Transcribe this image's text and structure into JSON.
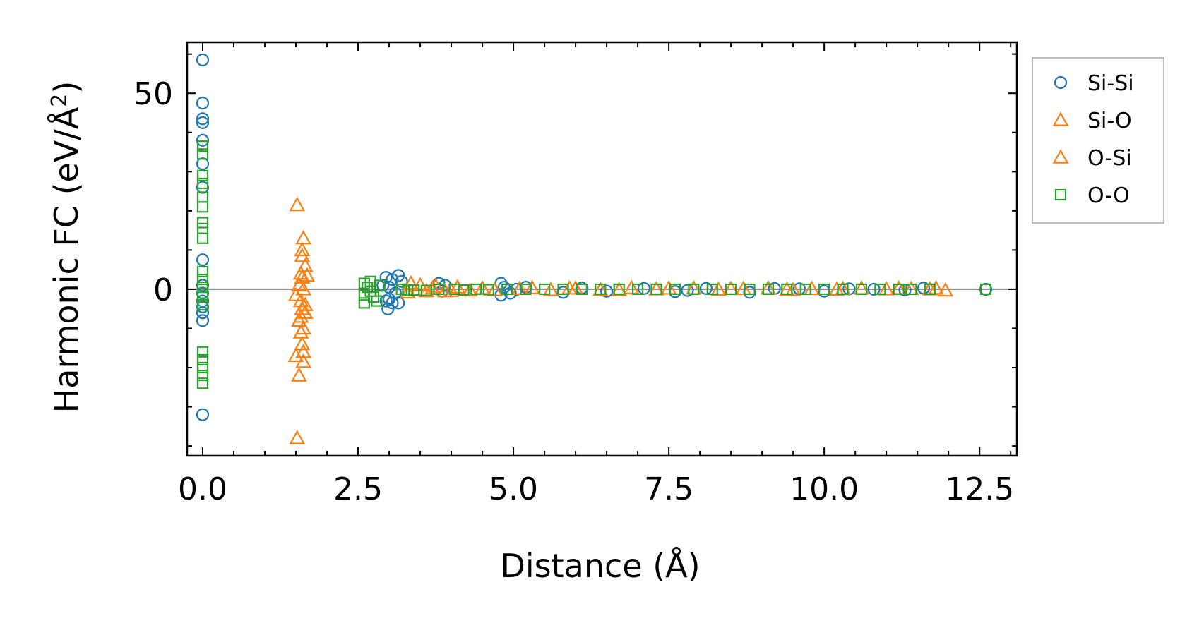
{
  "chart_data": {
    "type": "scatter",
    "title": "",
    "xlabel": "Distance (Å)",
    "ylabel_main": "Harmonic FC (eV/Å",
    "ylabel_sup": "2",
    "ylabel_close": ")",
    "xlim": [
      -0.25,
      13.1
    ],
    "ylim": [
      -42.5,
      63
    ],
    "x_ticks": [
      0.0,
      2.5,
      5.0,
      7.5,
      10.0,
      12.5
    ],
    "x_tick_labels": [
      "0.0",
      "2.5",
      "5.0",
      "7.5",
      "10.0",
      "12.5"
    ],
    "y_ticks": [
      0,
      50
    ],
    "y_tick_labels": [
      "0",
      "50"
    ],
    "x_minor_step": 0.5,
    "y_minor_step": 10,
    "zero_line": true,
    "legend_position": "outside-right-top",
    "series": [
      {
        "name": "Si-Si",
        "marker": "circle",
        "color": "#1f77b4",
        "points": [
          [
            0,
            58.5
          ],
          [
            0,
            47.5
          ],
          [
            0,
            43.5
          ],
          [
            0,
            42.5
          ],
          [
            0,
            38
          ],
          [
            0,
            32
          ],
          [
            0,
            26
          ],
          [
            0,
            7.5
          ],
          [
            0,
            1
          ],
          [
            0,
            -1
          ],
          [
            0,
            -3
          ],
          [
            0,
            -4.5
          ],
          [
            0,
            -6
          ],
          [
            0,
            -8
          ],
          [
            0,
            -32
          ],
          [
            2.95,
            3
          ],
          [
            3.05,
            2.5
          ],
          [
            3.15,
            3.5
          ],
          [
            3.2,
            2
          ],
          [
            2.9,
            1
          ],
          [
            3.0,
            0.5
          ],
          [
            3.1,
            -1
          ],
          [
            3.0,
            -2.5
          ],
          [
            2.95,
            -3
          ],
          [
            3.05,
            -3.5
          ],
          [
            3.15,
            -3.5
          ],
          [
            2.98,
            -5
          ],
          [
            3.8,
            1.5
          ],
          [
            3.9,
            1
          ],
          [
            3.85,
            -0.5
          ],
          [
            4.8,
            1.5
          ],
          [
            4.85,
            0.5
          ],
          [
            4.8,
            -1.5
          ],
          [
            4.95,
            -1
          ],
          [
            5.05,
            0
          ],
          [
            5.2,
            0.5
          ],
          [
            5.8,
            -0.8
          ],
          [
            6.1,
            0.3
          ],
          [
            6.5,
            -0.5
          ],
          [
            7.1,
            0.2
          ],
          [
            7.6,
            -0.6
          ],
          [
            7.8,
            -0.3
          ],
          [
            8.1,
            0.2
          ],
          [
            8.8,
            -0.8
          ],
          [
            9.2,
            0.2
          ],
          [
            9.6,
            0.1
          ],
          [
            10.0,
            -0.5
          ],
          [
            10.4,
            0.1
          ],
          [
            10.8,
            0
          ],
          [
            11.3,
            -0.2
          ],
          [
            11.6,
            0.3
          ],
          [
            12.6,
            0
          ]
        ]
      },
      {
        "name": "Si-O",
        "marker": "triangle",
        "color": "#ff7f0e",
        "points": [
          [
            1.52,
            21.5
          ],
          [
            1.62,
            13
          ],
          [
            1.6,
            8.5
          ],
          [
            1.65,
            6
          ],
          [
            1.58,
            4
          ],
          [
            1.68,
            3.5
          ],
          [
            1.55,
            1
          ],
          [
            1.62,
            0
          ],
          [
            1.5,
            -1.5
          ],
          [
            1.58,
            -3
          ],
          [
            1.6,
            -5
          ],
          [
            1.65,
            -6
          ],
          [
            1.55,
            -8
          ],
          [
            1.62,
            -10
          ],
          [
            1.58,
            -11
          ],
          [
            1.6,
            -14
          ],
          [
            1.5,
            -17
          ],
          [
            1.62,
            -18.5
          ],
          [
            1.55,
            -22
          ],
          [
            1.52,
            -38
          ],
          [
            3.35,
            1.5
          ],
          [
            3.5,
            1
          ],
          [
            3.6,
            -0.5
          ],
          [
            3.75,
            0.8
          ],
          [
            3.9,
            -0.5
          ],
          [
            4.1,
            0.5
          ],
          [
            4.3,
            -0.3
          ],
          [
            4.5,
            0.2
          ],
          [
            4.7,
            -0.2
          ],
          [
            5.3,
            0.3
          ],
          [
            5.6,
            -0.2
          ],
          [
            6.0,
            0.2
          ],
          [
            6.4,
            -0.2
          ],
          [
            6.9,
            0.3
          ],
          [
            7.3,
            0
          ],
          [
            7.9,
            0.2
          ],
          [
            8.3,
            -0.1
          ],
          [
            8.7,
            0.1
          ],
          [
            9.1,
            0.2
          ],
          [
            9.5,
            -0.2
          ],
          [
            9.8,
            0.1
          ],
          [
            10.2,
            -0.1
          ],
          [
            10.6,
            0.2
          ],
          [
            11.0,
            0
          ],
          [
            11.4,
            0.1
          ],
          [
            11.8,
            0.2
          ],
          [
            11.95,
            -0.3
          ]
        ]
      },
      {
        "name": "O-Si",
        "marker": "triangle",
        "color": "#ff7f0e",
        "points": [
          [
            1.6,
            10
          ],
          [
            1.6,
            3
          ],
          [
            1.65,
            -4
          ],
          [
            1.58,
            -7
          ],
          [
            1.62,
            -16
          ],
          [
            3.3,
            -0.8
          ],
          [
            3.7,
            0.3
          ],
          [
            4.0,
            -0.4
          ],
          [
            5.1,
            0.1
          ],
          [
            5.9,
            0.2
          ],
          [
            6.7,
            -0.2
          ],
          [
            7.5,
            0.2
          ],
          [
            8.5,
            0.1
          ],
          [
            9.4,
            -0.1
          ],
          [
            10.3,
            0.1
          ],
          [
            11.2,
            0.2
          ],
          [
            11.7,
            0
          ]
        ]
      },
      {
        "name": "O-O",
        "marker": "square",
        "color": "#2ca02c",
        "points": [
          [
            0,
            36.5
          ],
          [
            0,
            34.5
          ],
          [
            0,
            29
          ],
          [
            0,
            27
          ],
          [
            0,
            23.5
          ],
          [
            0,
            21
          ],
          [
            0,
            17
          ],
          [
            0,
            15.5
          ],
          [
            0,
            13
          ],
          [
            0,
            4.5
          ],
          [
            0,
            2.5
          ],
          [
            0,
            0.5
          ],
          [
            0,
            -1
          ],
          [
            0,
            -2
          ],
          [
            0,
            -4
          ],
          [
            0,
            -16
          ],
          [
            0,
            -18
          ],
          [
            0,
            -20
          ],
          [
            0,
            -22
          ],
          [
            0,
            -24
          ],
          [
            2.6,
            1.5
          ],
          [
            2.65,
            0.5
          ],
          [
            2.7,
            -0.5
          ],
          [
            2.6,
            -1.5
          ],
          [
            2.75,
            -2
          ],
          [
            2.6,
            -3.5
          ],
          [
            2.8,
            -3
          ],
          [
            2.85,
            1
          ],
          [
            2.7,
            2
          ],
          [
            3.2,
            0
          ],
          [
            3.3,
            -0.3
          ],
          [
            3.4,
            -0.2
          ],
          [
            3.6,
            -0.3
          ],
          [
            3.8,
            0
          ],
          [
            4.05,
            0
          ],
          [
            4.2,
            -0.2
          ],
          [
            4.4,
            0
          ],
          [
            4.6,
            -0.1
          ],
          [
            4.9,
            0
          ],
          [
            5.2,
            0
          ],
          [
            5.5,
            0
          ],
          [
            5.8,
            0
          ],
          [
            6.1,
            0
          ],
          [
            6.4,
            0
          ],
          [
            6.7,
            0
          ],
          [
            7.0,
            0
          ],
          [
            7.3,
            0
          ],
          [
            7.6,
            0
          ],
          [
            7.9,
            0
          ],
          [
            8.2,
            0
          ],
          [
            8.5,
            0
          ],
          [
            8.8,
            0
          ],
          [
            9.1,
            0
          ],
          [
            9.4,
            0
          ],
          [
            9.7,
            0
          ],
          [
            10.0,
            0
          ],
          [
            10.3,
            0
          ],
          [
            10.6,
            0
          ],
          [
            10.9,
            0
          ],
          [
            11.2,
            0
          ],
          [
            11.4,
            0
          ],
          [
            11.7,
            0
          ],
          [
            12.6,
            0
          ]
        ]
      }
    ]
  }
}
